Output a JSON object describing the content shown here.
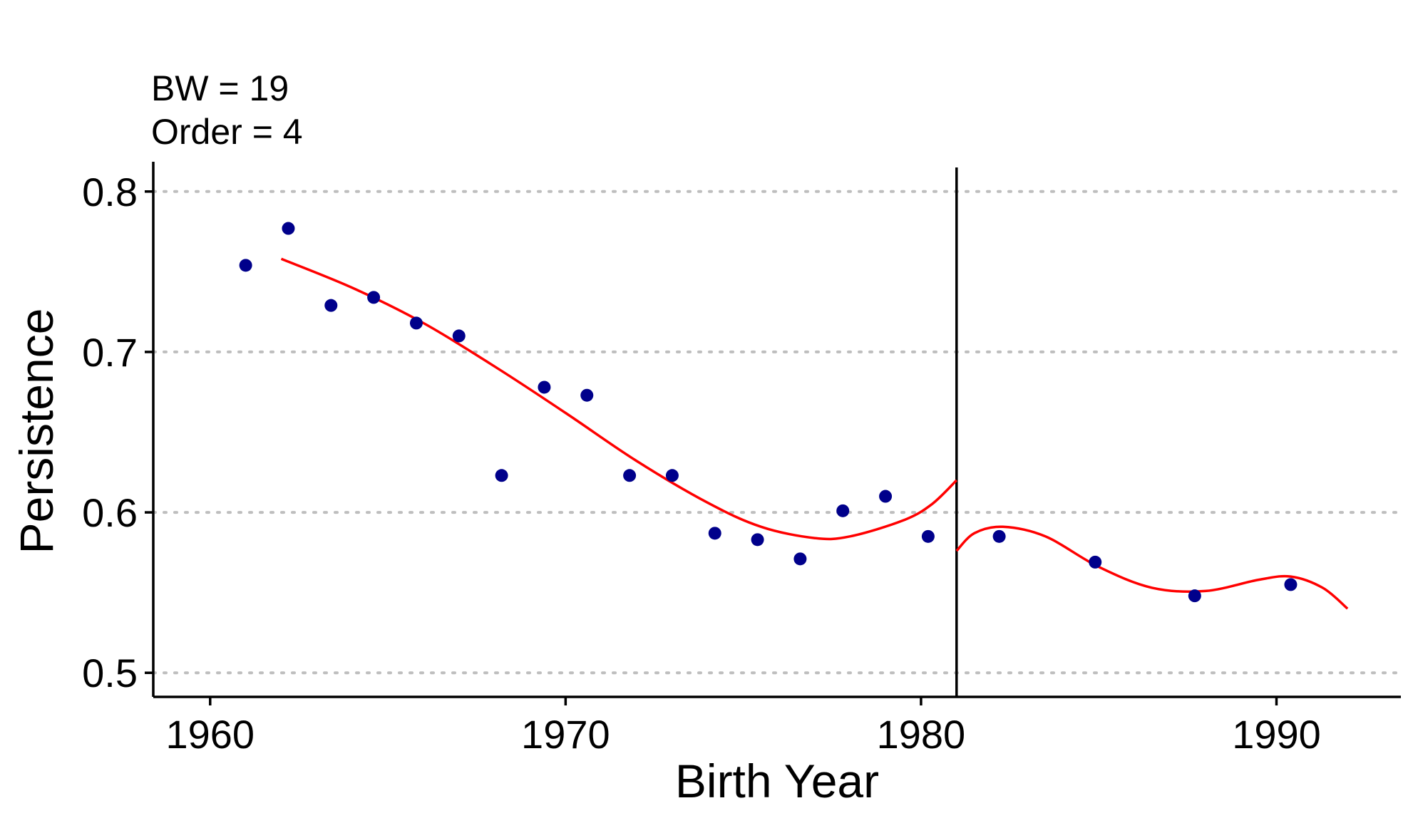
{
  "chart_data": {
    "type": "scatter",
    "xlabel": "Birth Year",
    "ylabel": "Persistence",
    "xlim": [
      1958.4,
      1993.5
    ],
    "ylim": [
      0.485,
      0.815
    ],
    "x_ticks": [
      1960,
      1970,
      1980,
      1990
    ],
    "y_ticks": [
      0.5,
      0.6,
      0.7,
      0.8
    ],
    "x_tick_labels": [
      "1960",
      "1970",
      "1980",
      "1990"
    ],
    "y_tick_labels": [
      "0.5",
      "0.6",
      "0.7",
      "0.8"
    ],
    "grid": "horizontal dotted at y ticks",
    "annotations": [
      "BW = 19",
      "Order = 4"
    ],
    "cutoff": 1981,
    "colors": {
      "points": "#00008B",
      "fit": "#FF0000",
      "cutoff": "#000000",
      "grid": "#BEBEBE"
    },
    "points": [
      {
        "x": 1961.0,
        "y": 0.754
      },
      {
        "x": 1962.2,
        "y": 0.777
      },
      {
        "x": 1963.4,
        "y": 0.729
      },
      {
        "x": 1964.6,
        "y": 0.734
      },
      {
        "x": 1965.8,
        "y": 0.718
      },
      {
        "x": 1967.0,
        "y": 0.71
      },
      {
        "x": 1968.2,
        "y": 0.623
      },
      {
        "x": 1969.4,
        "y": 0.678
      },
      {
        "x": 1970.6,
        "y": 0.673
      },
      {
        "x": 1971.8,
        "y": 0.623
      },
      {
        "x": 1973.0,
        "y": 0.623
      },
      {
        "x": 1974.2,
        "y": 0.587
      },
      {
        "x": 1975.4,
        "y": 0.583
      },
      {
        "x": 1976.6,
        "y": 0.571
      },
      {
        "x": 1977.8,
        "y": 0.601
      },
      {
        "x": 1979.0,
        "y": 0.61
      },
      {
        "x": 1980.2,
        "y": 0.585
      },
      {
        "x": 1982.2,
        "y": 0.585
      },
      {
        "x": 1984.9,
        "y": 0.569
      },
      {
        "x": 1987.7,
        "y": 0.548
      },
      {
        "x": 1990.4,
        "y": 0.555
      }
    ],
    "fit_left": [
      {
        "x": 1962.0,
        "y": 0.758
      },
      {
        "x": 1964.0,
        "y": 0.74
      },
      {
        "x": 1966.0,
        "y": 0.718
      },
      {
        "x": 1968.0,
        "y": 0.691
      },
      {
        "x": 1970.0,
        "y": 0.662
      },
      {
        "x": 1972.0,
        "y": 0.632
      },
      {
        "x": 1974.0,
        "y": 0.606
      },
      {
        "x": 1975.5,
        "y": 0.591
      },
      {
        "x": 1977.0,
        "y": 0.584
      },
      {
        "x": 1978.0,
        "y": 0.585
      },
      {
        "x": 1979.5,
        "y": 0.595
      },
      {
        "x": 1980.3,
        "y": 0.605
      },
      {
        "x": 1981.0,
        "y": 0.62
      }
    ],
    "fit_right": [
      {
        "x": 1981.0,
        "y": 0.576
      },
      {
        "x": 1981.5,
        "y": 0.587
      },
      {
        "x": 1982.3,
        "y": 0.591
      },
      {
        "x": 1983.5,
        "y": 0.585
      },
      {
        "x": 1985.0,
        "y": 0.566
      },
      {
        "x": 1986.5,
        "y": 0.553
      },
      {
        "x": 1988.0,
        "y": 0.551
      },
      {
        "x": 1989.5,
        "y": 0.558
      },
      {
        "x": 1990.4,
        "y": 0.56
      },
      {
        "x": 1991.3,
        "y": 0.553
      },
      {
        "x": 1992.0,
        "y": 0.54
      }
    ]
  }
}
